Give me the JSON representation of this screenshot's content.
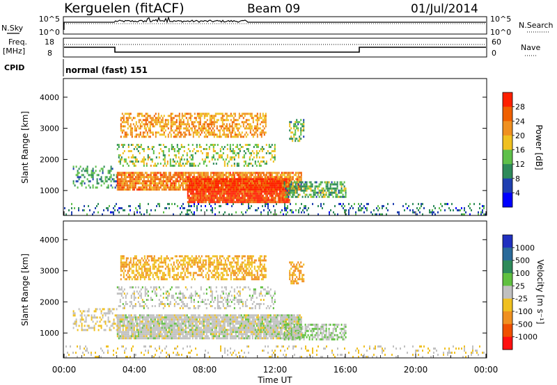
{
  "header": {
    "station": "Kerguelen (fitACF)",
    "beam": "Beam 09",
    "date": "01/Jul/2014"
  },
  "summary_panels": {
    "nsky_label": "N.Sky",
    "nsearch_label": "N.Search",
    "noise_ticks": [
      "10^5",
      "10^0"
    ],
    "freq_label": "Freq.",
    "freq_unit": "[MHz]",
    "freq_ticks": [
      "18",
      "8"
    ],
    "nave_label": "Nave",
    "nave_ticks": [
      "60",
      "0"
    ],
    "cpid_label": "CPID",
    "cpid_value": "normal (fast) 151"
  },
  "colors": {
    "power_scale": [
      "#0000ff",
      "#1f3fb0",
      "#2e8a5a",
      "#5fc04a",
      "#f0c020",
      "#f09020",
      "#f06000",
      "#ff2000"
    ],
    "velocity_scale": [
      "#2030c0",
      "#2a6a9a",
      "#2e8a5a",
      "#60c040",
      "#c0c0c0",
      "#f0c020",
      "#f09020",
      "#f05000",
      "#ff1010"
    ],
    "ground_scatter": "#c0c0c0"
  },
  "chart_data": [
    {
      "type": "heatmap",
      "panel": "power",
      "ylabel": "Slant Range [km]",
      "yticks": [
        1000,
        2000,
        3000,
        4000
      ],
      "ylim": [
        200,
        4600
      ],
      "xlim_hours": [
        0,
        24
      ],
      "colorbar": {
        "label": "Power [dB]",
        "ticks": [
          "4",
          "8",
          "12",
          "16",
          "20",
          "24",
          "28"
        ],
        "range": [
          0,
          30
        ]
      },
      "regions": [
        {
          "t0": 0.0,
          "t1": 24.0,
          "r0": 250,
          "r1": 600,
          "value": 8,
          "density": 0.18
        },
        {
          "t0": 0.5,
          "t1": 3.0,
          "r0": 1100,
          "r1": 1800,
          "value": 10,
          "density": 0.35
        },
        {
          "t0": 3.0,
          "t1": 13.5,
          "r0": 1000,
          "r1": 1600,
          "value": 22,
          "density": 0.85
        },
        {
          "t0": 7.0,
          "t1": 12.8,
          "r0": 650,
          "r1": 1400,
          "value": 27,
          "density": 0.95
        },
        {
          "t0": 12.5,
          "t1": 16.0,
          "r0": 800,
          "r1": 1300,
          "value": 12,
          "density": 0.6
        },
        {
          "t0": 3.2,
          "t1": 11.5,
          "r0": 2700,
          "r1": 3500,
          "value": 20,
          "density": 0.55
        },
        {
          "t0": 12.8,
          "t1": 13.6,
          "r0": 2600,
          "r1": 3300,
          "value": 12,
          "density": 0.55
        },
        {
          "t0": 3.0,
          "t1": 12.0,
          "r0": 1800,
          "r1": 2500,
          "value": 14,
          "density": 0.3
        }
      ]
    },
    {
      "type": "heatmap",
      "panel": "velocity",
      "ylabel": "Slant Range [km]",
      "yticks": [
        1000,
        2000,
        3000,
        4000
      ],
      "ylim": [
        200,
        4600
      ],
      "xlim_hours": [
        0,
        24
      ],
      "xlabel": "Time UT",
      "xticks": [
        "00:00",
        "04:00",
        "08:00",
        "12:00",
        "16:00",
        "20:00",
        "00:00"
      ],
      "colorbar": {
        "label": "Velocity [m s⁻¹]",
        "ticks": [
          "1000",
          "500",
          "100",
          "25",
          "-25",
          "-100",
          "-500",
          "-1000"
        ],
        "range": [
          -1000,
          1000
        ]
      },
      "regions": [
        {
          "t0": 0.0,
          "t1": 24.0,
          "r0": 250,
          "r1": 600,
          "value": -100,
          "density": 0.15
        },
        {
          "t0": 0.5,
          "t1": 3.0,
          "r0": 1100,
          "r1": 1800,
          "value": -100,
          "density": 0.35
        },
        {
          "t0": 3.0,
          "t1": 13.5,
          "r0": 800,
          "r1": 1600,
          "value": 0,
          "density": 0.9
        },
        {
          "t0": 12.5,
          "t1": 16.0,
          "r0": 800,
          "r1": 1300,
          "value": 100,
          "density": 0.6
        },
        {
          "t0": 3.2,
          "t1": 11.5,
          "r0": 2700,
          "r1": 3500,
          "value": -300,
          "density": 0.55
        },
        {
          "t0": 12.8,
          "t1": 13.6,
          "r0": 2600,
          "r1": 3300,
          "value": -400,
          "density": 0.55
        },
        {
          "t0": 3.0,
          "t1": 12.0,
          "r0": 1800,
          "r1": 2500,
          "value": 0,
          "density": 0.3
        }
      ]
    }
  ]
}
